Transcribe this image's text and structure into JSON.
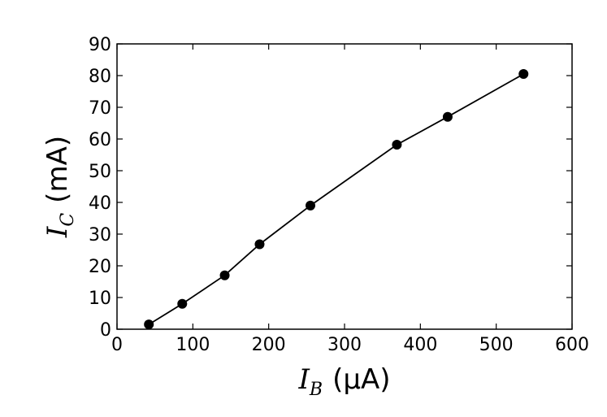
{
  "chart_data": {
    "type": "line",
    "title": "",
    "xlabel": {
      "symbol": "I",
      "subscript": "B",
      "unit": "(μA)"
    },
    "ylabel": {
      "symbol": "I",
      "subscript": "C",
      "unit": "(mA)"
    },
    "xlim": [
      0,
      600
    ],
    "ylim": [
      0,
      90
    ],
    "xticks": [
      0,
      100,
      200,
      300,
      400,
      500,
      600
    ],
    "yticks": [
      0,
      10,
      20,
      30,
      40,
      50,
      60,
      70,
      80,
      90
    ],
    "grid": false,
    "series": [
      {
        "marker": "circle",
        "color": "#000000",
        "x": [
          42,
          86,
          142,
          188,
          255,
          369,
          436,
          536
        ],
        "y": [
          1.5,
          8.0,
          17.0,
          26.8,
          39.0,
          58.2,
          67.0,
          80.5
        ]
      }
    ]
  }
}
